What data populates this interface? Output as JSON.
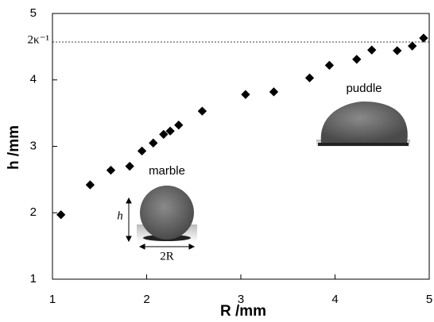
{
  "chart_data": {
    "type": "scatter",
    "x_label": "R /mm",
    "y_label": "h /mm",
    "x": [
      1.09,
      1.4,
      1.62,
      1.82,
      1.95,
      2.07,
      2.18,
      2.25,
      2.34,
      2.59,
      3.05,
      3.35,
      3.73,
      3.94,
      4.23,
      4.39,
      4.66,
      4.82,
      4.94
    ],
    "values": [
      1.97,
      2.42,
      2.64,
      2.7,
      2.93,
      3.05,
      3.18,
      3.23,
      3.32,
      3.53,
      3.78,
      3.82,
      4.03,
      4.22,
      4.31,
      4.45,
      4.44,
      4.51,
      4.63
    ],
    "color": "#000000",
    "xlim": [
      1,
      5
    ],
    "xticks": [
      1,
      2,
      3,
      4,
      5
    ],
    "ylim": [
      1,
      5
    ],
    "yticks": [
      1,
      2,
      3,
      4,
      5
    ],
    "reference_line": {
      "value": 4.57,
      "label": "2κ⁻¹"
    },
    "annotations": {
      "marble": "marble",
      "puddle": "puddle",
      "height": "h",
      "width": "2R"
    }
  }
}
